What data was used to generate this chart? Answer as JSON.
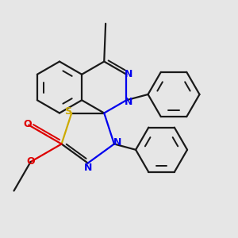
{
  "bg_color": "#e6e6e6",
  "bond_color": "#1a1a1a",
  "N_color": "#0000ee",
  "O_color": "#dd0000",
  "S_color": "#ccaa00",
  "lw": 1.6,
  "lw_double_inner": 1.4,
  "figsize": [
    3.0,
    3.0
  ],
  "dpi": 100,
  "xlim": [
    -3.5,
    4.5
  ],
  "ylim": [
    -4.2,
    3.8
  ]
}
